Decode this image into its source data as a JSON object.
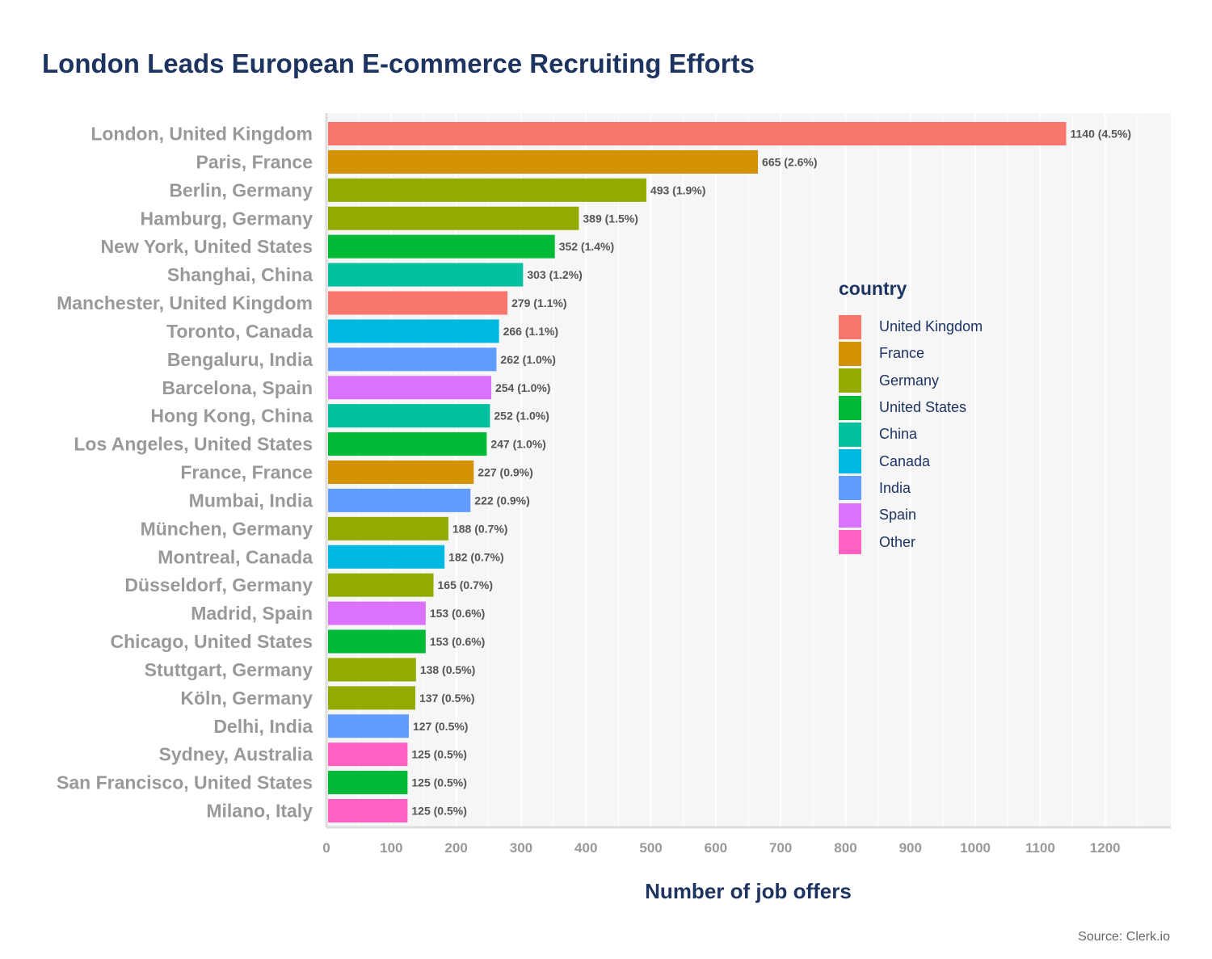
{
  "chart_data": {
    "type": "bar",
    "orientation": "horizontal",
    "title": "London Leads European E-commerce Recruiting Efforts",
    "xlabel": "Number of job offers",
    "ylabel": "",
    "source": "Source: Clerk.io",
    "xlim": [
      0,
      1300
    ],
    "xticks": [
      0,
      100,
      200,
      300,
      400,
      500,
      600,
      700,
      800,
      900,
      1000,
      1100,
      1200
    ],
    "grid": true,
    "legend_title": "country",
    "legend_position": "right",
    "legend": [
      {
        "name": "United Kingdom",
        "color": "#F8766D"
      },
      {
        "name": "France",
        "color": "#D39200"
      },
      {
        "name": "Germany",
        "color": "#93AA00"
      },
      {
        "name": "United States",
        "color": "#00BA38"
      },
      {
        "name": "China",
        "color": "#00C19F"
      },
      {
        "name": "Canada",
        "color": "#00B9E3"
      },
      {
        "name": "India",
        "color": "#619CFF"
      },
      {
        "name": "Spain",
        "color": "#DB72FB"
      },
      {
        "name": "Other",
        "color": "#FF61C3"
      }
    ],
    "bars": [
      {
        "city": "London, United Kingdom",
        "value": 1140,
        "label": "1140 (4.5%)",
        "country": "United Kingdom"
      },
      {
        "city": "Paris, France",
        "value": 665,
        "label": "665 (2.6%)",
        "country": "France"
      },
      {
        "city": "Berlin, Germany",
        "value": 493,
        "label": "493 (1.9%)",
        "country": "Germany"
      },
      {
        "city": "Hamburg, Germany",
        "value": 389,
        "label": "389 (1.5%)",
        "country": "Germany"
      },
      {
        "city": "New York, United States",
        "value": 352,
        "label": "352 (1.4%)",
        "country": "United States"
      },
      {
        "city": "Shanghai, China",
        "value": 303,
        "label": "303 (1.2%)",
        "country": "China"
      },
      {
        "city": "Manchester, United Kingdom",
        "value": 279,
        "label": "279 (1.1%)",
        "country": "United Kingdom"
      },
      {
        "city": "Toronto, Canada",
        "value": 266,
        "label": "266 (1.1%)",
        "country": "Canada"
      },
      {
        "city": "Bengaluru, India",
        "value": 262,
        "label": "262 (1.0%)",
        "country": "India"
      },
      {
        "city": "Barcelona, Spain",
        "value": 254,
        "label": "254 (1.0%)",
        "country": "Spain"
      },
      {
        "city": "Hong Kong, China",
        "value": 252,
        "label": "252 (1.0%)",
        "country": "China"
      },
      {
        "city": "Los Angeles, United States",
        "value": 247,
        "label": "247 (1.0%)",
        "country": "United States"
      },
      {
        "city": "France, France",
        "value": 227,
        "label": "227 (0.9%)",
        "country": "France"
      },
      {
        "city": "Mumbai, India",
        "value": 222,
        "label": "222 (0.9%)",
        "country": "India"
      },
      {
        "city": "München, Germany",
        "value": 188,
        "label": "188 (0.7%)",
        "country": "Germany"
      },
      {
        "city": "Montreal, Canada",
        "value": 182,
        "label": "182 (0.7%)",
        "country": "Canada"
      },
      {
        "city": "Düsseldorf, Germany",
        "value": 165,
        "label": "165 (0.7%)",
        "country": "Germany"
      },
      {
        "city": "Madrid, Spain",
        "value": 153,
        "label": "153 (0.6%)",
        "country": "Spain"
      },
      {
        "city": "Chicago, United States",
        "value": 153,
        "label": "153 (0.6%)",
        "country": "United States"
      },
      {
        "city": "Stuttgart, Germany",
        "value": 138,
        "label": "138 (0.5%)",
        "country": "Germany"
      },
      {
        "city": "Köln, Germany",
        "value": 137,
        "label": "137 (0.5%)",
        "country": "Germany"
      },
      {
        "city": "Delhi, India",
        "value": 127,
        "label": "127 (0.5%)",
        "country": "India"
      },
      {
        "city": "Sydney, Australia",
        "value": 125,
        "label": "125 (0.5%)",
        "country": "Other"
      },
      {
        "city": "San Francisco, United States",
        "value": 125,
        "label": "125 (0.5%)",
        "country": "United States"
      },
      {
        "city": "Milano, Italy",
        "value": 125,
        "label": "125 (0.5%)",
        "country": "Other"
      }
    ]
  }
}
